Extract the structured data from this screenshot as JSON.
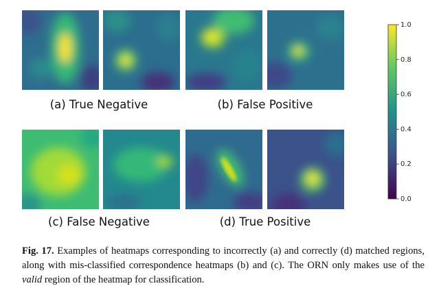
{
  "figure": {
    "panels": [
      {
        "caption": "(a) True Negative"
      },
      {
        "caption": "(b) False Positive"
      },
      {
        "caption": "(c) False Negative"
      },
      {
        "caption": "(d) True Positive"
      }
    ],
    "colorbar": {
      "ticks": [
        {
          "value": 0,
          "label": "0.0"
        },
        0.2,
        0.4,
        0.6,
        0.8,
        {
          "value": 1,
          "label": "1.0"
        }
      ],
      "range": [
        0,
        1
      ]
    }
  },
  "caption": {
    "label": "Fig. 17.",
    "text_before": "Examples of heatmaps corresponding to incorrectly (a) and correctly (d) matched regions, along with mis-classified correspondence heatmaps (b) and (c). The ORN only makes use of the",
    "emphasis": "valid",
    "text_after": "region of the heatmap for classification."
  }
}
